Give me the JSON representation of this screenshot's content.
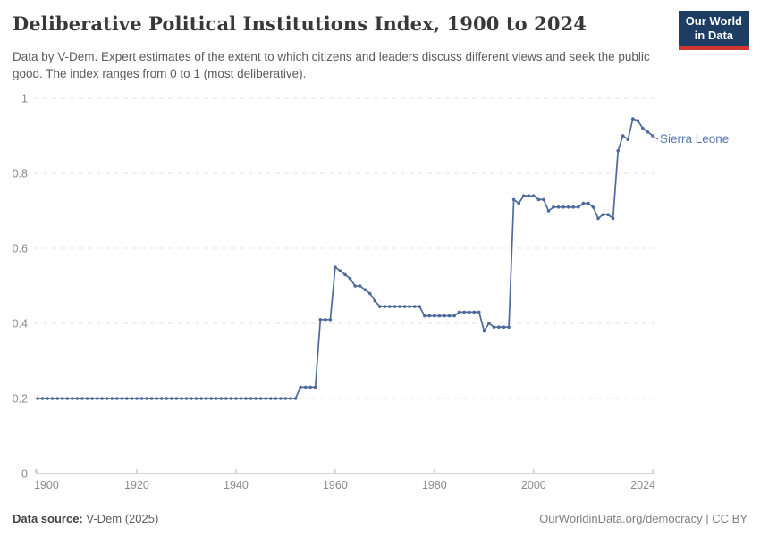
{
  "header": {
    "title": "Deliberative Political Institutions Index, 1900 to 2024",
    "subtitle": "Data by V-Dem. Expert estimates of the extent to which citizens and leaders discuss different views and seek the public good. The index ranges from 0 to 1 (most deliberative).",
    "logo": {
      "line1": "Our World",
      "line2": "in Data",
      "bg_color": "#1d3d63",
      "accent_color": "#d1362f"
    }
  },
  "chart_data": {
    "type": "line",
    "title": "Deliberative Political Institutions Index, 1900 to 2024",
    "entity": "Sierra Leone",
    "line_color": "#4c6a9c",
    "label_color": "#5876ad",
    "grid": "horizontal dashed",
    "legend_position": "end-of-line label",
    "xlim": [
      1900,
      2024
    ],
    "ylim": [
      0,
      1
    ],
    "xticks": [
      1900,
      1920,
      1940,
      1960,
      1980,
      2000,
      2024
    ],
    "xtick_labels": [
      "1900",
      "1920",
      "1940",
      "1960",
      "1980",
      "2000",
      "2024"
    ],
    "yticks": [
      0,
      0.2,
      0.4,
      0.6,
      0.8,
      1
    ],
    "ytick_labels": [
      "0",
      "0.2",
      "0.4",
      "0.6",
      "0.8",
      "1"
    ],
    "x": [
      1900,
      1901,
      1902,
      1903,
      1904,
      1905,
      1906,
      1907,
      1908,
      1909,
      1910,
      1911,
      1912,
      1913,
      1914,
      1915,
      1916,
      1917,
      1918,
      1919,
      1920,
      1921,
      1922,
      1923,
      1924,
      1925,
      1926,
      1927,
      1928,
      1929,
      1930,
      1931,
      1932,
      1933,
      1934,
      1935,
      1936,
      1937,
      1938,
      1939,
      1940,
      1941,
      1942,
      1943,
      1944,
      1945,
      1946,
      1947,
      1948,
      1949,
      1950,
      1951,
      1952,
      1953,
      1954,
      1955,
      1956,
      1957,
      1958,
      1959,
      1960,
      1961,
      1962,
      1963,
      1964,
      1965,
      1966,
      1967,
      1968,
      1969,
      1970,
      1971,
      1972,
      1973,
      1974,
      1975,
      1976,
      1977,
      1978,
      1979,
      1980,
      1981,
      1982,
      1983,
      1984,
      1985,
      1986,
      1987,
      1988,
      1989,
      1990,
      1991,
      1992,
      1993,
      1994,
      1995,
      1996,
      1997,
      1998,
      1999,
      2000,
      2001,
      2002,
      2003,
      2004,
      2005,
      2006,
      2007,
      2008,
      2009,
      2010,
      2011,
      2012,
      2013,
      2014,
      2015,
      2016,
      2017,
      2018,
      2019,
      2020,
      2021,
      2022,
      2023,
      2024
    ],
    "values": [
      0.2,
      0.2,
      0.2,
      0.2,
      0.2,
      0.2,
      0.2,
      0.2,
      0.2,
      0.2,
      0.2,
      0.2,
      0.2,
      0.2,
      0.2,
      0.2,
      0.2,
      0.2,
      0.2,
      0.2,
      0.2,
      0.2,
      0.2,
      0.2,
      0.2,
      0.2,
      0.2,
      0.2,
      0.2,
      0.2,
      0.2,
      0.2,
      0.2,
      0.2,
      0.2,
      0.2,
      0.2,
      0.2,
      0.2,
      0.2,
      0.2,
      0.2,
      0.2,
      0.2,
      0.2,
      0.2,
      0.2,
      0.2,
      0.2,
      0.2,
      0.2,
      0.2,
      0.2,
      0.23,
      0.23,
      0.23,
      0.23,
      0.41,
      0.41,
      0.41,
      0.55,
      0.54,
      0.53,
      0.52,
      0.5,
      0.5,
      0.49,
      0.48,
      0.46,
      0.445,
      0.445,
      0.445,
      0.445,
      0.445,
      0.445,
      0.445,
      0.445,
      0.445,
      0.42,
      0.42,
      0.42,
      0.42,
      0.42,
      0.42,
      0.42,
      0.43,
      0.43,
      0.43,
      0.43,
      0.43,
      0.38,
      0.4,
      0.39,
      0.39,
      0.39,
      0.39,
      0.73,
      0.72,
      0.74,
      0.74,
      0.74,
      0.73,
      0.73,
      0.7,
      0.71,
      0.71,
      0.71,
      0.71,
      0.71,
      0.71,
      0.72,
      0.72,
      0.71,
      0.68,
      0.69,
      0.69,
      0.68,
      0.86,
      0.9,
      0.89,
      0.945,
      0.94,
      0.92,
      0.91,
      0.9
    ]
  },
  "footer": {
    "source_label": "Data source:",
    "source_value": " V-Dem (2025)",
    "credit": "OurWorldinData.org/democracy | CC BY"
  }
}
